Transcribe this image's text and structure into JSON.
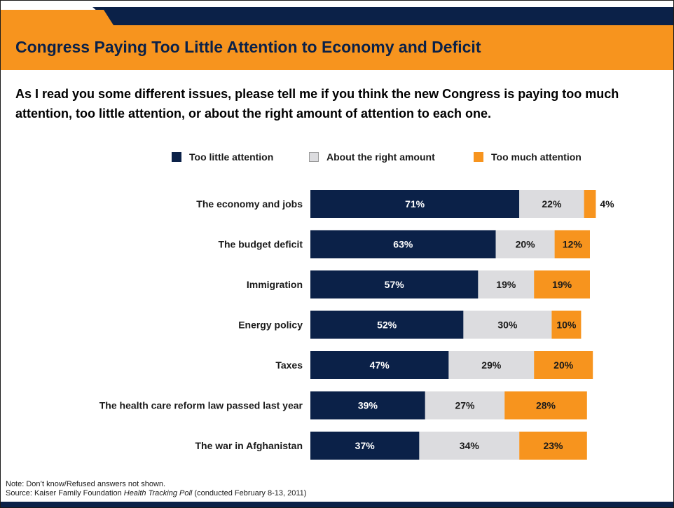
{
  "title": "Congress Paying Too Little Attention to Economy and Deficit",
  "question": "As I read you some different issues, please tell me if you think the new Congress is paying too much attention, too little attention, or about the right amount of attention to each one.",
  "colors": {
    "too_little": "#0b2148",
    "right_amount": "#dcdcdf",
    "too_much": "#f7941e",
    "header_navy": "#0b2148",
    "header_orange": "#f7941e"
  },
  "legend": [
    {
      "label": "Too little attention",
      "color": "#0b2148"
    },
    {
      "label": "About the right amount",
      "color": "#dcdcdf"
    },
    {
      "label": "Too much attention",
      "color": "#f7941e"
    }
  ],
  "chart_data": {
    "type": "bar",
    "orientation": "horizontal",
    "stacked": true,
    "categories": [
      "The economy and jobs",
      "The budget deficit",
      "Immigration",
      "Energy policy",
      "Taxes",
      "The health care reform law passed last year",
      "The war in Afghanistan"
    ],
    "series": [
      {
        "name": "Too little attention",
        "values": [
          71,
          63,
          57,
          52,
          47,
          39,
          37
        ]
      },
      {
        "name": "About the right amount",
        "values": [
          22,
          20,
          19,
          30,
          29,
          27,
          34
        ]
      },
      {
        "name": "Too much attention",
        "values": [
          4,
          12,
          19,
          10,
          20,
          28,
          23
        ]
      }
    ],
    "value_labels": [
      [
        "71%",
        "22%",
        "4%"
      ],
      [
        "63%",
        "20%",
        "12%"
      ],
      [
        "57%",
        "19%",
        "19%"
      ],
      [
        "52%",
        "30%",
        "10%"
      ],
      [
        "47%",
        "29%",
        "20%"
      ],
      [
        "39%",
        "27%",
        "28%"
      ],
      [
        "37%",
        "34%",
        "23%"
      ]
    ],
    "unit": "%",
    "xlim": [
      0,
      100
    ],
    "legend_position": "top",
    "grid": false
  },
  "footnote": {
    "note": "Note: Don’t know/Refused answers not shown.",
    "source_prefix": "Source: Kaiser Family Foundation ",
    "source_italic": "Health Tracking Poll",
    "source_suffix": " (conducted February 8-13, 2011)"
  }
}
